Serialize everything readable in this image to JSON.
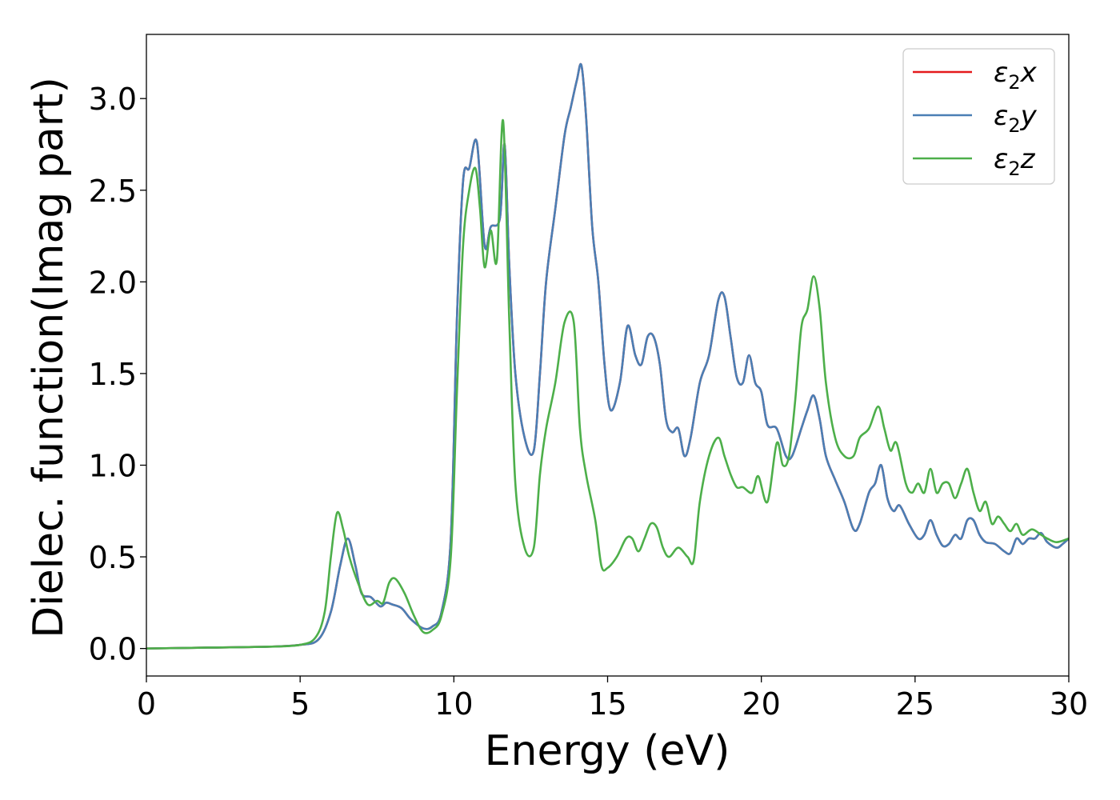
{
  "chart_data": {
    "type": "line",
    "title": "",
    "xlabel": "Energy (eV)",
    "ylabel": "Dielec. function(Imag part)",
    "xlim": [
      0,
      30
    ],
    "ylim": [
      -0.15,
      3.35
    ],
    "xticks": [
      0,
      5,
      10,
      15,
      20,
      25,
      30
    ],
    "xtick_labels": [
      "0",
      "5",
      "10",
      "15",
      "20",
      "25",
      "30"
    ],
    "yticks": [
      0.0,
      0.5,
      1.0,
      1.5,
      2.0,
      2.5,
      3.0
    ],
    "ytick_labels": [
      "0.0",
      "0.5",
      "1.0",
      "1.5",
      "2.0",
      "2.5",
      "3.0"
    ],
    "grid": false,
    "legend": "top-right",
    "series": [
      {
        "name": "ε₂x",
        "label_main": "ε",
        "label_sub": "2",
        "label_suffix": "x",
        "color": "#e41a1c",
        "x": [
          0,
          2,
          4,
          5,
          5.6,
          6.0,
          6.3,
          6.55,
          6.8,
          7.0,
          7.3,
          7.6,
          7.8,
          8.0,
          8.3,
          8.6,
          9.0,
          9.3,
          9.6,
          9.9,
          10.1,
          10.3,
          10.5,
          10.75,
          11.0,
          11.2,
          11.5,
          11.65,
          11.8,
          12.0,
          12.3,
          12.6,
          12.8,
          13.0,
          13.3,
          13.6,
          13.8,
          14.0,
          14.15,
          14.3,
          14.5,
          14.7,
          14.9,
          15.1,
          15.4,
          15.65,
          15.9,
          16.1,
          16.3,
          16.5,
          16.7,
          16.9,
          17.1,
          17.3,
          17.5,
          17.7,
          18.0,
          18.3,
          18.6,
          18.8,
          19.0,
          19.2,
          19.4,
          19.6,
          19.8,
          20.0,
          20.2,
          20.5,
          20.8,
          21.0,
          21.3,
          21.5,
          21.7,
          21.9,
          22.1,
          22.4,
          22.7,
          23.0,
          23.2,
          23.5,
          23.7,
          23.9,
          24.1,
          24.3,
          24.5,
          24.8,
          25.1,
          25.3,
          25.5,
          25.7,
          25.9,
          26.1,
          26.3,
          26.5,
          26.7,
          26.9,
          27.1,
          27.3,
          27.6,
          27.9,
          28.1,
          28.3,
          28.5,
          28.7,
          28.9,
          29.1,
          29.3,
          29.6,
          29.8,
          30.0
        ],
        "y": [
          0.0,
          0.005,
          0.01,
          0.02,
          0.05,
          0.2,
          0.45,
          0.6,
          0.45,
          0.3,
          0.28,
          0.23,
          0.25,
          0.24,
          0.22,
          0.16,
          0.11,
          0.12,
          0.2,
          0.6,
          1.8,
          2.55,
          2.62,
          2.76,
          2.2,
          2.3,
          2.35,
          2.75,
          2.1,
          1.5,
          1.15,
          1.08,
          1.5,
          2.0,
          2.4,
          2.8,
          2.95,
          3.1,
          3.18,
          2.9,
          2.3,
          2.0,
          1.55,
          1.3,
          1.45,
          1.76,
          1.6,
          1.55,
          1.7,
          1.7,
          1.55,
          1.25,
          1.18,
          1.2,
          1.05,
          1.15,
          1.45,
          1.6,
          1.9,
          1.92,
          1.7,
          1.48,
          1.45,
          1.6,
          1.45,
          1.4,
          1.22,
          1.2,
          1.05,
          1.05,
          1.2,
          1.3,
          1.38,
          1.25,
          1.05,
          0.92,
          0.8,
          0.65,
          0.68,
          0.85,
          0.9,
          1.0,
          0.82,
          0.75,
          0.78,
          0.68,
          0.6,
          0.62,
          0.7,
          0.62,
          0.56,
          0.57,
          0.62,
          0.6,
          0.7,
          0.7,
          0.62,
          0.58,
          0.57,
          0.53,
          0.52,
          0.6,
          0.57,
          0.6,
          0.6,
          0.63,
          0.58,
          0.55,
          0.57,
          0.6
        ]
      },
      {
        "name": "ε₂y",
        "label_main": "ε",
        "label_sub": "2",
        "label_suffix": "y",
        "color": "#4a7fb5",
        "x": [
          0,
          2,
          4,
          5,
          5.6,
          6.0,
          6.3,
          6.55,
          6.8,
          7.0,
          7.3,
          7.6,
          7.8,
          8.0,
          8.3,
          8.6,
          9.0,
          9.3,
          9.6,
          9.9,
          10.1,
          10.3,
          10.5,
          10.75,
          11.0,
          11.2,
          11.5,
          11.65,
          11.8,
          12.0,
          12.3,
          12.6,
          12.8,
          13.0,
          13.3,
          13.6,
          13.8,
          14.0,
          14.15,
          14.3,
          14.5,
          14.7,
          14.9,
          15.1,
          15.4,
          15.65,
          15.9,
          16.1,
          16.3,
          16.5,
          16.7,
          16.9,
          17.1,
          17.3,
          17.5,
          17.7,
          18.0,
          18.3,
          18.6,
          18.8,
          19.0,
          19.2,
          19.4,
          19.6,
          19.8,
          20.0,
          20.2,
          20.5,
          20.8,
          21.0,
          21.3,
          21.5,
          21.7,
          21.9,
          22.1,
          22.4,
          22.7,
          23.0,
          23.2,
          23.5,
          23.7,
          23.9,
          24.1,
          24.3,
          24.5,
          24.8,
          25.1,
          25.3,
          25.5,
          25.7,
          25.9,
          26.1,
          26.3,
          26.5,
          26.7,
          26.9,
          27.1,
          27.3,
          27.6,
          27.9,
          28.1,
          28.3,
          28.5,
          28.7,
          28.9,
          29.1,
          29.3,
          29.6,
          29.8,
          30.0
        ],
        "y": [
          0.0,
          0.005,
          0.01,
          0.02,
          0.05,
          0.2,
          0.45,
          0.6,
          0.45,
          0.3,
          0.28,
          0.23,
          0.25,
          0.24,
          0.22,
          0.16,
          0.11,
          0.12,
          0.2,
          0.6,
          1.8,
          2.55,
          2.62,
          2.76,
          2.2,
          2.3,
          2.35,
          2.75,
          2.1,
          1.5,
          1.15,
          1.08,
          1.5,
          2.0,
          2.4,
          2.8,
          2.95,
          3.1,
          3.18,
          2.9,
          2.3,
          2.0,
          1.55,
          1.3,
          1.45,
          1.76,
          1.6,
          1.55,
          1.7,
          1.7,
          1.55,
          1.25,
          1.18,
          1.2,
          1.05,
          1.15,
          1.45,
          1.6,
          1.9,
          1.92,
          1.7,
          1.48,
          1.45,
          1.6,
          1.45,
          1.4,
          1.22,
          1.2,
          1.05,
          1.05,
          1.2,
          1.3,
          1.38,
          1.25,
          1.05,
          0.92,
          0.8,
          0.65,
          0.68,
          0.85,
          0.9,
          1.0,
          0.82,
          0.75,
          0.78,
          0.68,
          0.6,
          0.62,
          0.7,
          0.62,
          0.56,
          0.57,
          0.62,
          0.6,
          0.7,
          0.7,
          0.62,
          0.58,
          0.57,
          0.53,
          0.52,
          0.6,
          0.57,
          0.6,
          0.6,
          0.63,
          0.58,
          0.55,
          0.57,
          0.6
        ]
      },
      {
        "name": "ε₂z",
        "label_main": "ε",
        "label_sub": "2",
        "label_suffix": "z",
        "color": "#4daf4a",
        "x": [
          0,
          2,
          4,
          5,
          5.5,
          5.8,
          6.0,
          6.2,
          6.4,
          6.6,
          6.9,
          7.2,
          7.5,
          7.7,
          7.9,
          8.1,
          8.4,
          8.7,
          9.0,
          9.3,
          9.6,
          9.9,
          10.1,
          10.3,
          10.5,
          10.7,
          10.85,
          11.0,
          11.2,
          11.4,
          11.6,
          11.8,
          12.0,
          12.3,
          12.6,
          12.8,
          13.0,
          13.3,
          13.6,
          13.9,
          14.1,
          14.3,
          14.6,
          14.8,
          15.0,
          15.3,
          15.6,
          15.8,
          16.0,
          16.2,
          16.4,
          16.6,
          16.8,
          17.0,
          17.3,
          17.6,
          17.8,
          18.0,
          18.3,
          18.6,
          18.8,
          19.0,
          19.2,
          19.4,
          19.7,
          19.9,
          20.2,
          20.5,
          20.7,
          20.9,
          21.1,
          21.3,
          21.5,
          21.7,
          21.9,
          22.1,
          22.4,
          22.7,
          23.0,
          23.2,
          23.5,
          23.8,
          24.0,
          24.2,
          24.4,
          24.7,
          24.9,
          25.1,
          25.3,
          25.5,
          25.7,
          25.9,
          26.1,
          26.3,
          26.5,
          26.7,
          26.9,
          27.1,
          27.3,
          27.5,
          27.7,
          27.9,
          28.1,
          28.3,
          28.5,
          28.8,
          29.1,
          29.3,
          29.6,
          30.0
        ],
        "y": [
          0.0,
          0.005,
          0.01,
          0.02,
          0.06,
          0.2,
          0.5,
          0.74,
          0.65,
          0.5,
          0.35,
          0.24,
          0.26,
          0.25,
          0.36,
          0.38,
          0.3,
          0.18,
          0.09,
          0.1,
          0.18,
          0.5,
          1.4,
          2.2,
          2.5,
          2.62,
          2.4,
          2.08,
          2.28,
          2.12,
          2.88,
          1.8,
          0.9,
          0.55,
          0.55,
          0.95,
          1.2,
          1.45,
          1.78,
          1.78,
          1.2,
          0.95,
          0.7,
          0.45,
          0.44,
          0.5,
          0.6,
          0.6,
          0.53,
          0.6,
          0.68,
          0.66,
          0.55,
          0.5,
          0.55,
          0.5,
          0.48,
          0.8,
          1.05,
          1.15,
          1.05,
          0.95,
          0.88,
          0.88,
          0.85,
          0.94,
          0.8,
          1.12,
          1.0,
          1.05,
          1.35,
          1.75,
          1.85,
          2.03,
          1.85,
          1.45,
          1.15,
          1.05,
          1.05,
          1.15,
          1.2,
          1.32,
          1.2,
          1.08,
          1.12,
          0.9,
          0.85,
          0.9,
          0.85,
          0.98,
          0.85,
          0.9,
          0.9,
          0.82,
          0.9,
          0.98,
          0.85,
          0.75,
          0.8,
          0.68,
          0.72,
          0.68,
          0.64,
          0.68,
          0.62,
          0.65,
          0.62,
          0.6,
          0.58,
          0.6
        ]
      }
    ]
  }
}
